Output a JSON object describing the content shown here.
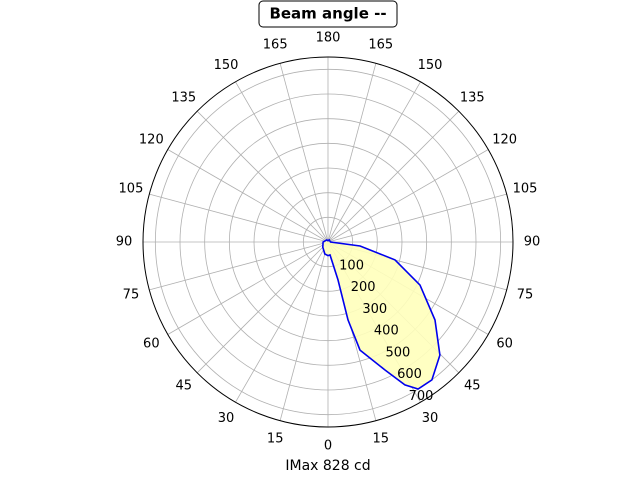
{
  "chart_data": {
    "type": "polar",
    "title": "Beam angle --",
    "xlabel": "IMax 828 cd",
    "rlim": [
      0,
      750
    ],
    "rticks": [
      100,
      200,
      300,
      400,
      500,
      600,
      700
    ],
    "thetaticks": [
      0,
      15,
      30,
      45,
      60,
      75,
      90,
      105,
      120,
      135,
      150,
      165,
      180,
      {
        "value": 195,
        "label": "165"
      },
      {
        "value": 210,
        "label": "150"
      },
      {
        "value": 225,
        "label": "135"
      },
      {
        "value": 240,
        "label": "120"
      },
      {
        "value": 255,
        "label": "105"
      },
      {
        "value": 270,
        "label": "90"
      },
      {
        "value": 285,
        "label": "75"
      },
      {
        "value": 300,
        "label": "60"
      },
      {
        "value": 315,
        "label": "45"
      },
      {
        "value": 330,
        "label": "30"
      },
      {
        "value": 345,
        "label": "15"
      }
    ],
    "grid": true,
    "series": [
      {
        "color": "#0000ee",
        "fill": "#ffffbb",
        "theta": [
          0,
          8.7,
          14.7,
          14.4,
          16.5,
          24,
          28.3,
          31.5,
          37,
          44.7,
          53.9,
          64.9,
          75,
          82.9,
          90,
          150,
          180,
          210,
          270,
          315,
          345,
          360
        ],
        "r": [
          55,
          53,
          159,
          326,
          457,
          568,
          658,
          699,
          700,
          645,
          537,
          412,
          281,
          131,
          10,
          10,
          5,
          10,
          20,
          30,
          50,
          55
        ]
      }
    ]
  }
}
